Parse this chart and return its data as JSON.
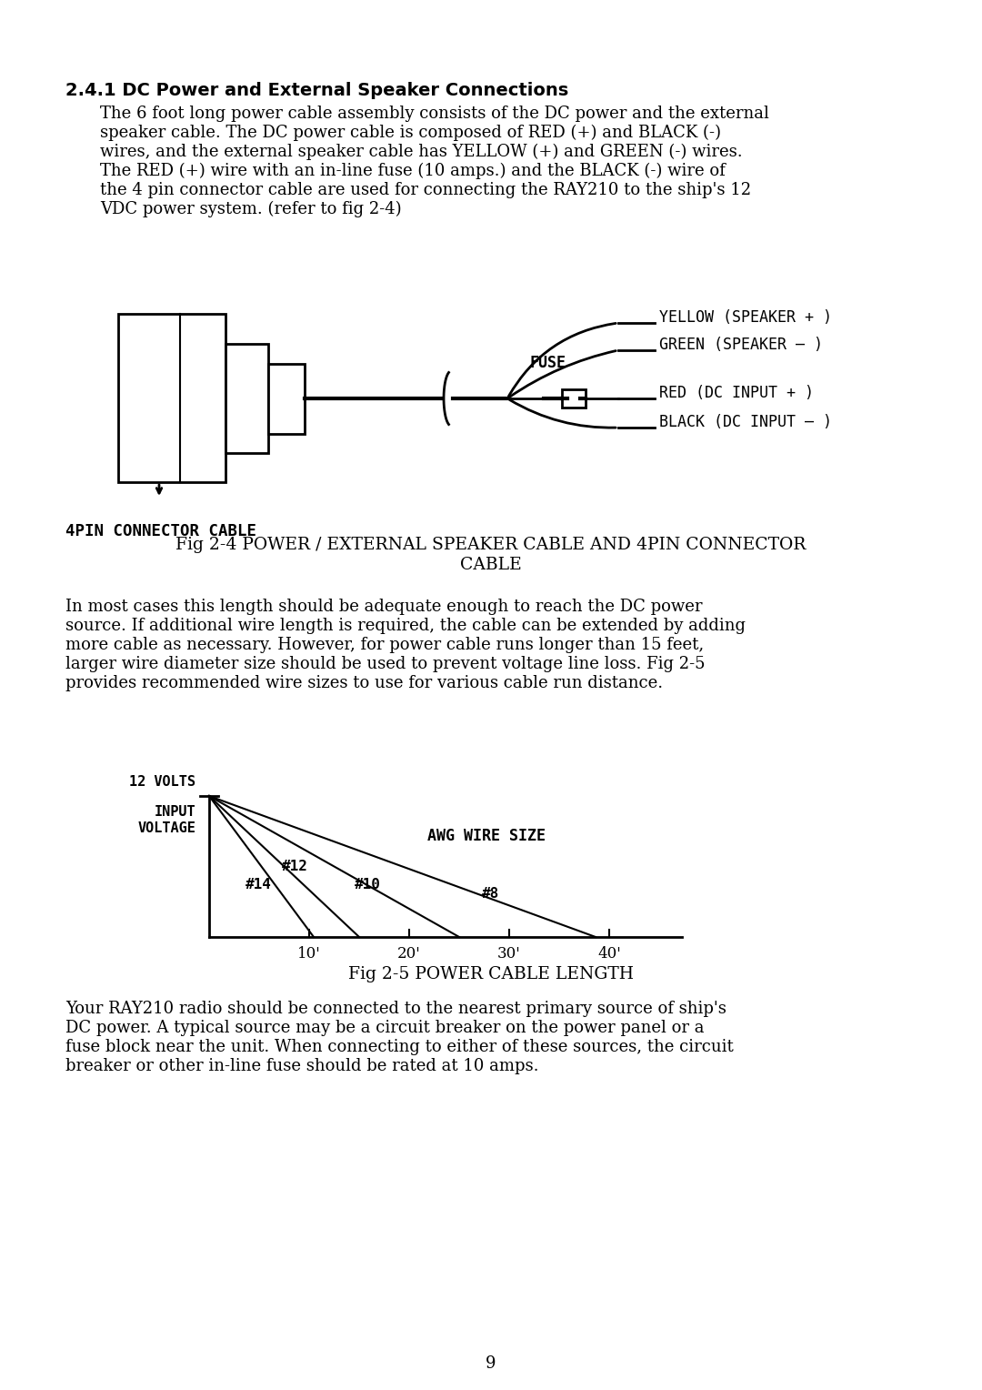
{
  "bg_color": "#ffffff",
  "section_title": "2.4.1 DC Power and External Speaker Connections",
  "para1_lines": [
    "The 6 foot long power cable assembly consists of the DC power and the external",
    "speaker cable. The DC power cable is composed of RED (+) and BLACK (-)",
    "wires, and the external speaker cable has YELLOW (+) and GREEN (-) wires.",
    "The RED (+) wire with an in-line fuse (10 amps.) and the BLACK (-) wire of",
    "the 4 pin connector cable are used for connecting the RAY210 to the ship's 12",
    "VDC power system. (refer to fig 2-4)"
  ],
  "fig24_caption_line1": "Fig 2-4 POWER / EXTERNAL SPEAKER CABLE AND 4PIN CONNECTOR",
  "fig24_caption_line2": "CABLE",
  "para2_lines": [
    "In most cases this length should be adequate enough to reach the DC power",
    "source. If additional wire length is required, the cable can be extended by adding",
    "more cable as necessary. However, for power cable runs longer than 15 feet,",
    "larger wire diameter size should be used to prevent voltage line loss. Fig 2-5",
    "provides recommended wire sizes to use for various cable run distance."
  ],
  "fig25_caption": "Fig 2-5 POWER CABLE LENGTH",
  "para3_lines": [
    "Your RAY210 radio should be connected to the nearest primary source of ship's",
    "DC power. A typical source may be a circuit breaker on the power panel or a",
    "fuse block near the unit. When connecting to either of these sources, the circuit",
    "breaker or other in-line fuse should be rated at 10 amps."
  ],
  "page_number": "9",
  "wire_labels": [
    "YELLOW (SPEAKER + )",
    "GREEN (SPEAKER – )",
    "RED (DC INPUT + )",
    "BLACK (DC INPUT – )"
  ],
  "cable_length_labels": [
    "10'",
    "20'",
    "30'",
    "40'"
  ],
  "connector_label": "4PIN CONNECTOR CABLE",
  "awg_label_text": "AWG WIRE SIZE",
  "volt_label": [
    "12 VOLTS",
    "INPUT",
    "VOLTAGE"
  ]
}
